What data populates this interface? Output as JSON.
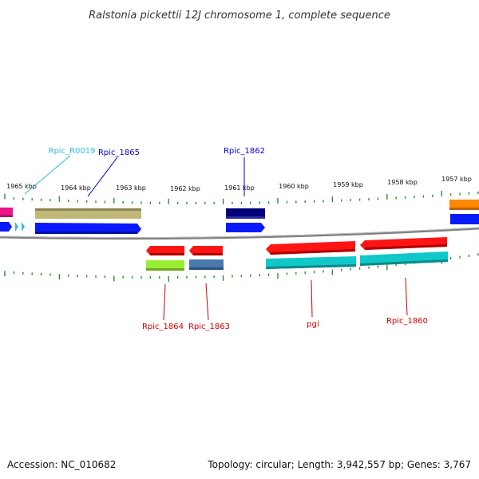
{
  "title": "Ralstonia pickettii 12J chromosome 1, complete sequence",
  "footer": {
    "accession": "Accession: NC_010682",
    "topology": "Topology: circular; Length: 3,942,557 bp; Genes: 3,767"
  },
  "kbp_labels": [
    "1965 kbp",
    "1964 kbp",
    "1963 kbp",
    "1962 kbp",
    "1961 kbp",
    "1960 kbp",
    "1959 kbp",
    "1958 kbp",
    "1957 kbp"
  ],
  "gene_labels": {
    "rpic_r0019": "Rpic_R0019",
    "rpic_1865": "Rpic_1865",
    "rpic_1862": "Rpic_1862",
    "rpic_1864": "Rpic_1864",
    "rpic_1863": "Rpic_1863",
    "pgi": "pgi",
    "rpic_1860": "Rpic_1860"
  },
  "colors": {
    "backbone": "#808080",
    "tick": "#2e8b2e",
    "label_cyan": "#33bbdd",
    "label_blue": "#0000cc",
    "label_red": "#cc0000",
    "gene_blue": "#0a1aff",
    "gene_red": "#ff1414",
    "gene_cyan": "#10c8c8",
    "gene_khaki": "#c0b878",
    "gene_navy": "#00007a",
    "gene_green": "#99ee33",
    "gene_steel": "#4a7aaa",
    "gene_magenta": "#ee1188",
    "gene_orange": "#ff8a00"
  }
}
